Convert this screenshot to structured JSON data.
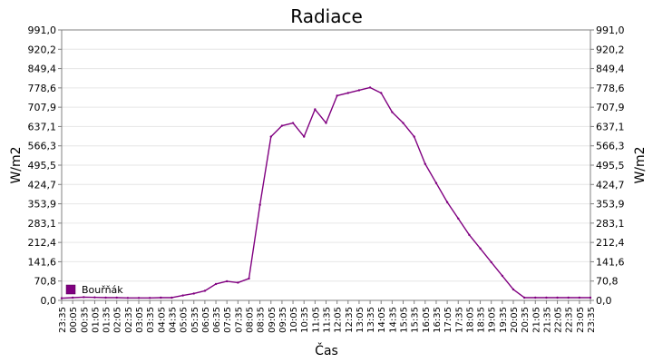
{
  "chart_data": {
    "type": "line",
    "title": "Radiace",
    "xlabel": "Čas",
    "ylabel": "W/m2",
    "ylabel_right": "W/m2",
    "ylim": [
      0,
      991
    ],
    "yticks": [
      "0,0",
      "70,8",
      "141,6",
      "212,4",
      "283,1",
      "353,9",
      "424,7",
      "495,5",
      "566,3",
      "637,1",
      "707,9",
      "778,6",
      "849,4",
      "920,2",
      "991,0"
    ],
    "xticks": [
      "23:35",
      "00:05",
      "00:35",
      "01:05",
      "01:35",
      "02:05",
      "02:35",
      "03:05",
      "03:35",
      "04:05",
      "04:35",
      "05:05",
      "05:35",
      "06:05",
      "06:35",
      "07:05",
      "07:35",
      "08:05",
      "08:35",
      "09:05",
      "09:35",
      "10:05",
      "10:35",
      "11:05",
      "11:35",
      "12:05",
      "12:35",
      "13:05",
      "13:35",
      "14:05",
      "14:35",
      "15:05",
      "15:35",
      "16:05",
      "16:35",
      "17:05",
      "17:35",
      "18:05",
      "18:35",
      "19:05",
      "19:35",
      "20:05",
      "20:35",
      "21:05",
      "21:35",
      "22:05",
      "22:35",
      "23:05",
      "23:35"
    ],
    "grid": true,
    "legend_position": "bottom-left",
    "series": [
      {
        "name": "Bouřňák",
        "color": "#800080",
        "x": [
          "23:35",
          "00:05",
          "00:35",
          "01:05",
          "01:35",
          "02:05",
          "02:35",
          "03:05",
          "03:35",
          "04:05",
          "04:35",
          "05:05",
          "05:35",
          "06:05",
          "06:35",
          "07:05",
          "07:35",
          "08:05",
          "08:35",
          "09:05",
          "09:35",
          "10:05",
          "10:35",
          "11:05",
          "11:35",
          "12:05",
          "12:35",
          "13:05",
          "13:35",
          "14:05",
          "14:35",
          "15:05",
          "15:35",
          "16:05",
          "16:35",
          "17:05",
          "17:35",
          "18:05",
          "18:35",
          "19:05",
          "19:35",
          "20:05",
          "20:35",
          "21:05",
          "21:35",
          "22:05",
          "22:35",
          "23:05",
          "23:35"
        ],
        "values": [
          8,
          10,
          12,
          11,
          10,
          10,
          9,
          9,
          9,
          10,
          10,
          18,
          25,
          35,
          60,
          70,
          65,
          80,
          350,
          600,
          640,
          650,
          600,
          700,
          650,
          750,
          760,
          770,
          780,
          760,
          690,
          650,
          600,
          500,
          430,
          360,
          300,
          240,
          190,
          140,
          90,
          40,
          10,
          10,
          10,
          10,
          10,
          10,
          10
        ]
      }
    ]
  }
}
